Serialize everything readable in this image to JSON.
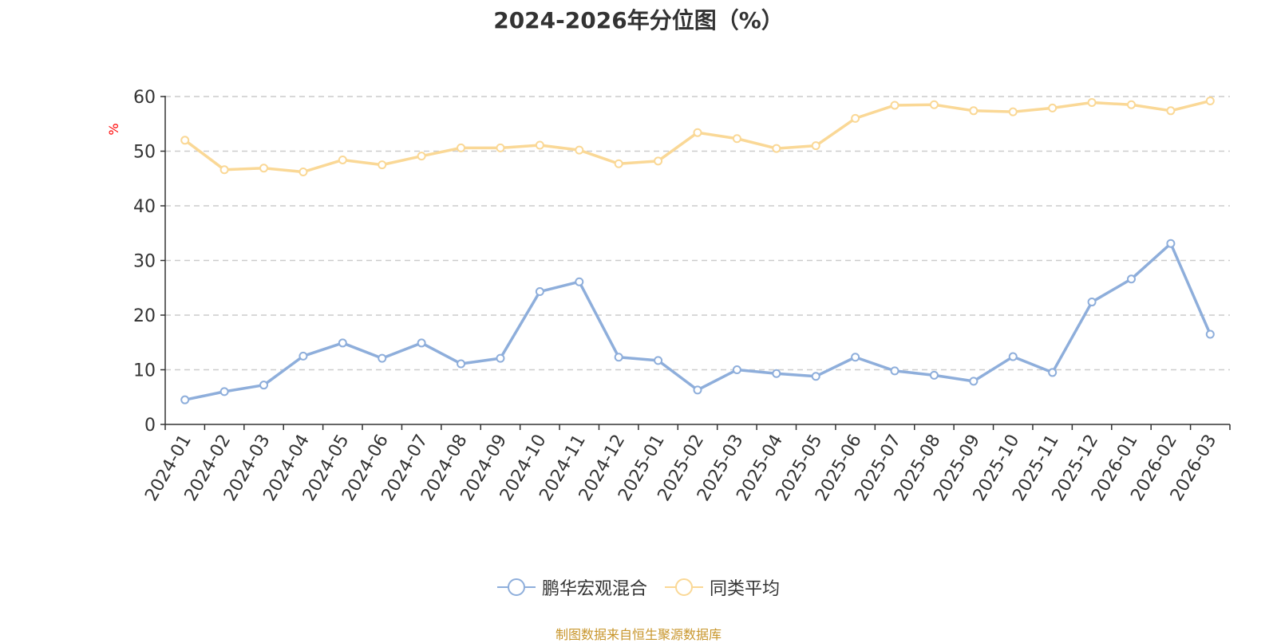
{
  "chart_data": {
    "type": "line",
    "title": "2024-2026年分位图（%）",
    "ylabel": "%",
    "xlabel": "",
    "ylim": [
      0,
      60
    ],
    "yticks": [
      "0",
      "10",
      "20",
      "30",
      "40",
      "50",
      "60"
    ],
    "grid": "horizontal dashed",
    "legend_position": "bottom-center",
    "categories": [
      "2024-01",
      "2024-02",
      "2024-03",
      "2024-04",
      "2024-05",
      "2024-06",
      "2024-07",
      "2024-08",
      "2024-09",
      "2024-10",
      "2024-11",
      "2024-12",
      "2025-01",
      "2025-02",
      "2025-03",
      "2025-04",
      "2025-05",
      "2025-06",
      "2025-07",
      "2025-08",
      "2025-09",
      "2025-10",
      "2025-11",
      "2025-12",
      "2026-01",
      "2026-02",
      "2026-03"
    ],
    "series": [
      {
        "name": "鹏华宏观混合",
        "color": "#8eaedb",
        "values": [
          4.5,
          6.0,
          7.2,
          12.5,
          14.9,
          12.1,
          14.9,
          11.1,
          12.1,
          24.3,
          26.1,
          12.3,
          11.7,
          6.3,
          10.0,
          9.3,
          8.8,
          12.3,
          9.8,
          9.0,
          7.9,
          12.4,
          9.5,
          22.4,
          26.6,
          33.1,
          16.5
        ]
      },
      {
        "name": "同类平均",
        "color": "#fad896",
        "values": [
          52.0,
          46.6,
          46.9,
          46.2,
          48.4,
          47.5,
          49.1,
          50.6,
          50.6,
          51.1,
          50.2,
          47.7,
          48.2,
          53.4,
          52.3,
          50.5,
          51.0,
          56.0,
          58.4,
          58.5,
          57.4,
          57.2,
          57.9,
          58.9,
          58.5,
          57.4,
          59.2
        ]
      }
    ],
    "source_note": "制图数据来自恒生聚源数据库"
  }
}
